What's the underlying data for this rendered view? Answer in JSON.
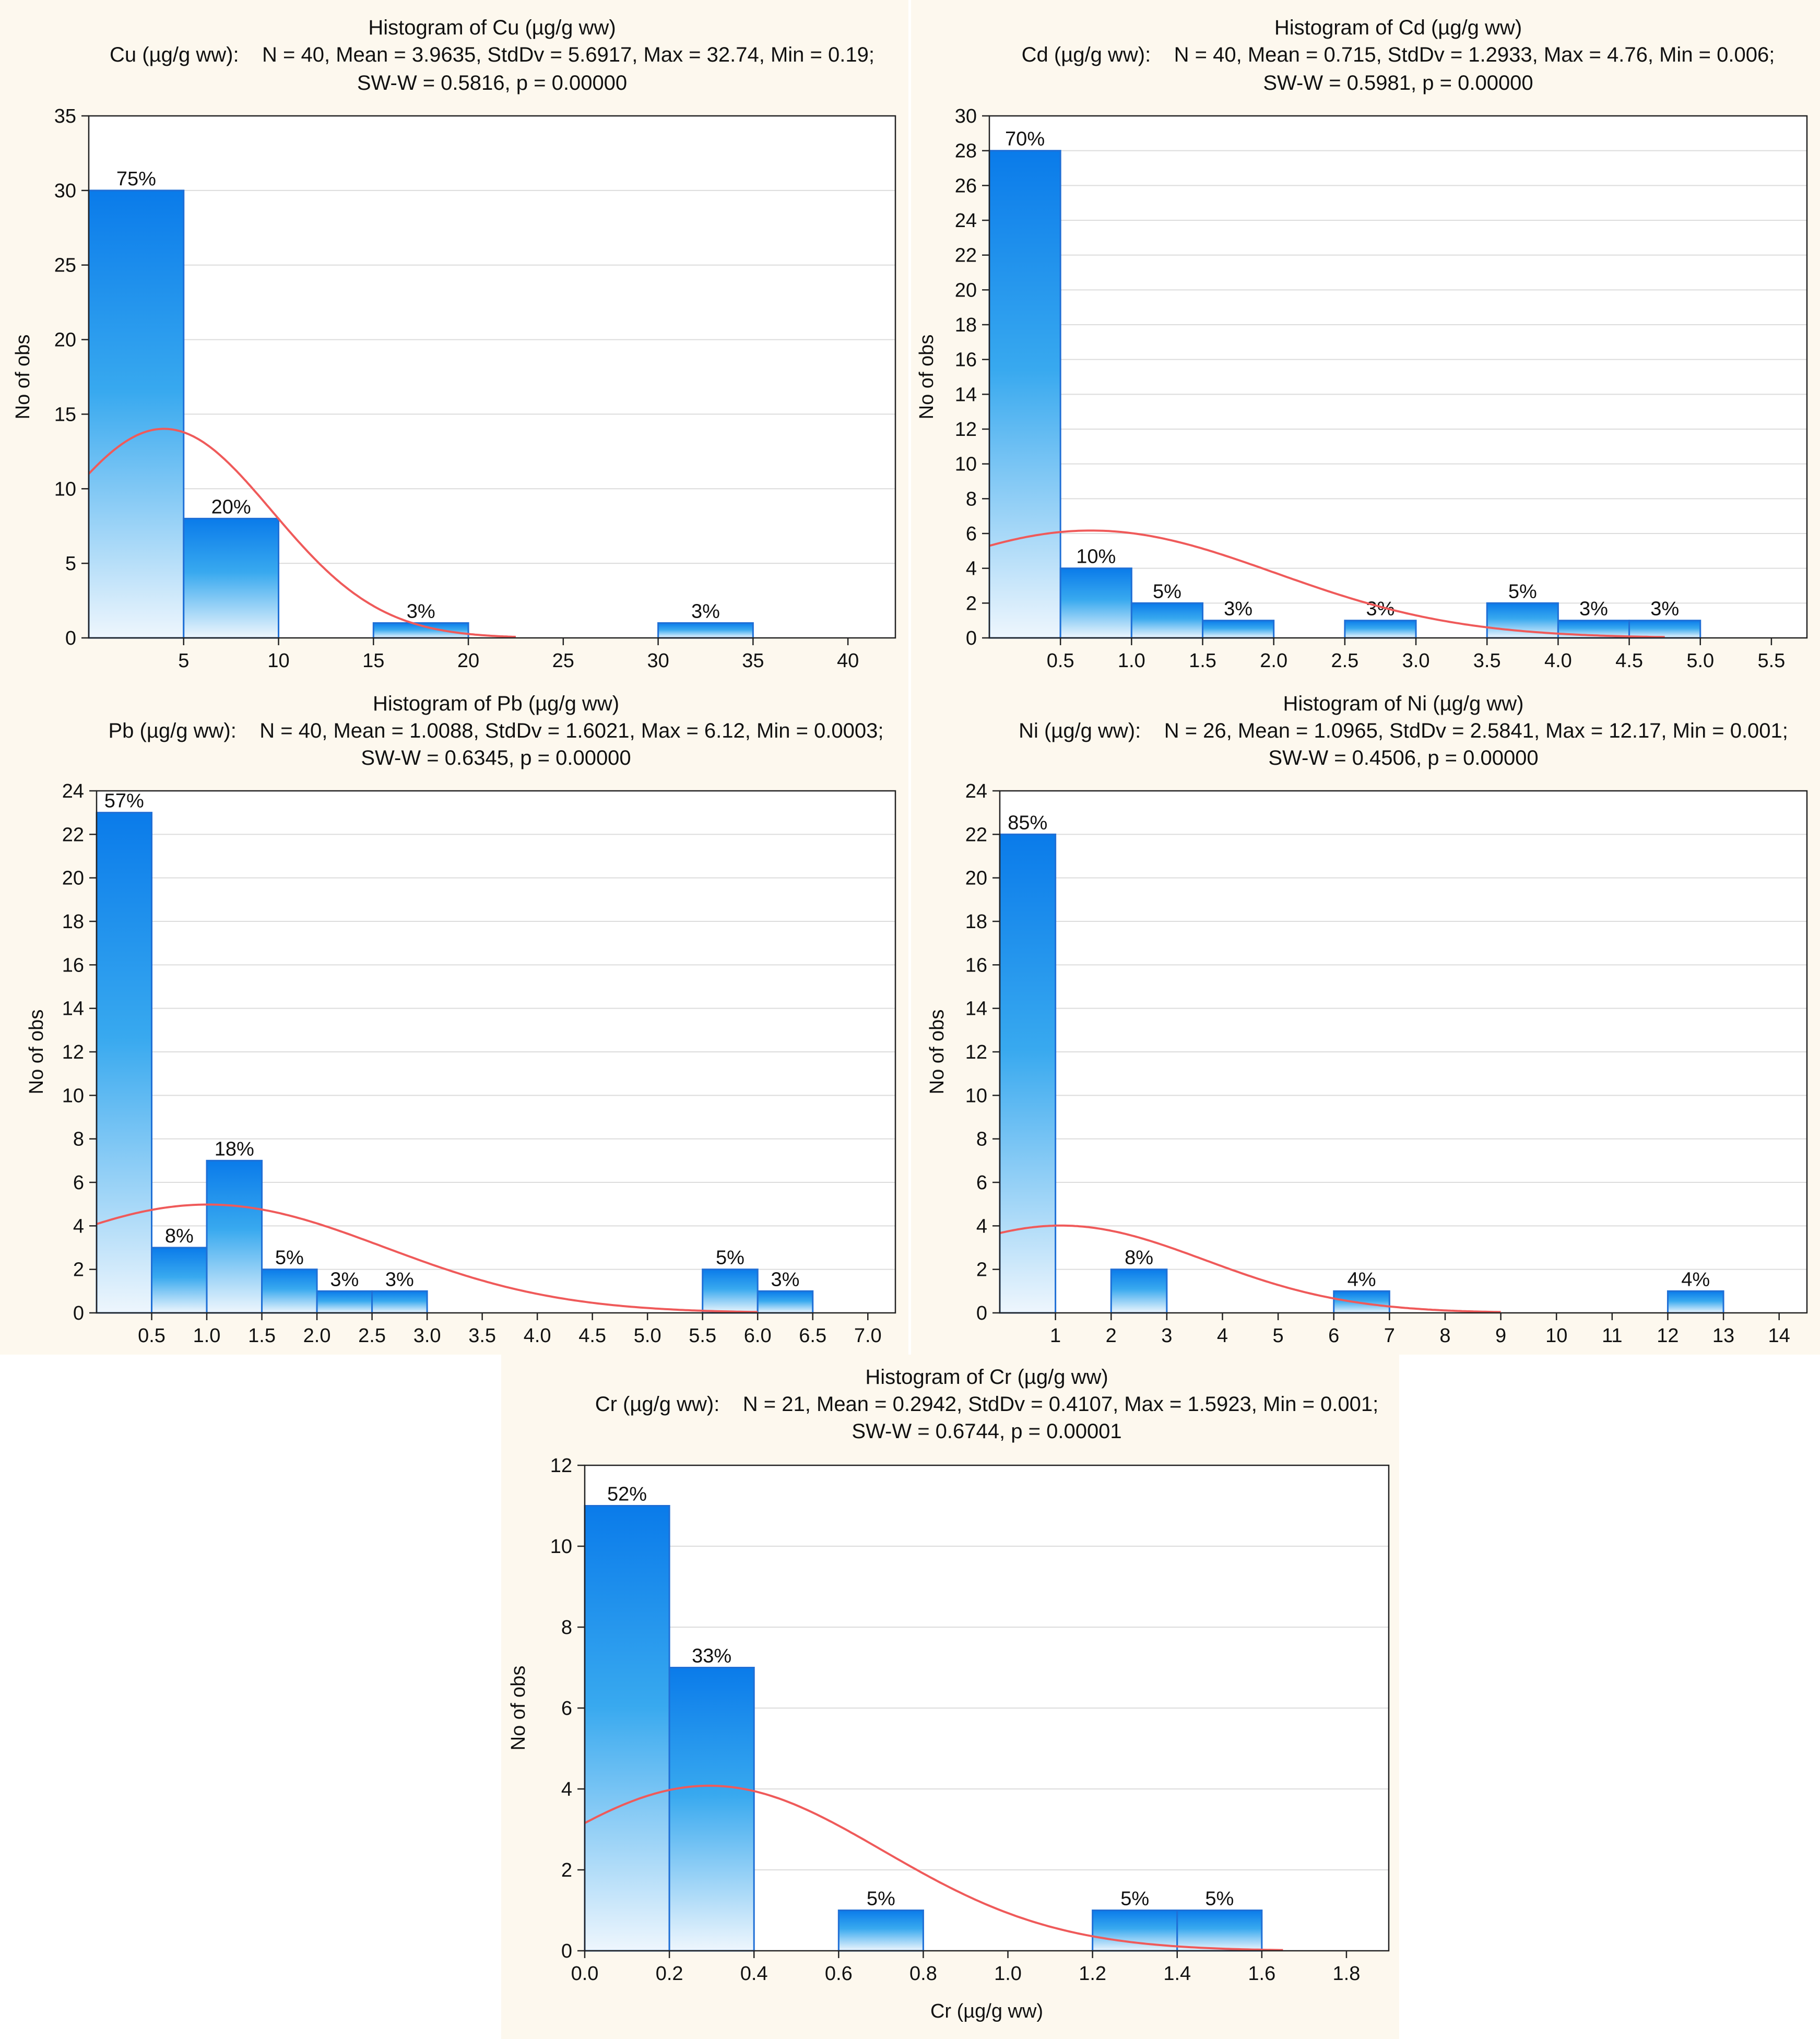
{
  "colors": {
    "panel_background": "#fdf8ee",
    "plot_background": "#ffffff",
    "bar_fill_top": "#0a7bea",
    "bar_fill_bottom": "#eef6fd",
    "bar_stroke": "#1f6fd6",
    "normal_curve": "#ef5a5a",
    "gridline": "#dcdcdc"
  },
  "chart_data": [
    {
      "id": "cu",
      "type": "bar",
      "title": "Histogram of Cu (µg/g ww)",
      "stats_line1": "Cu (µg/g ww):    N = 40, Mean = 3.9635, StdDv = 5.6917, Max = 32.74, Min = 0.19;",
      "stats_line2": "SW-W = 0.5816, p = 0.00000",
      "xlabel": "",
      "ylabel": "No of obs",
      "xlim": [
        0,
        42.5
      ],
      "ylim": [
        0,
        35
      ],
      "xticks": [
        5,
        10,
        15,
        20,
        25,
        30,
        35,
        40
      ],
      "yticks": [
        0,
        5,
        10,
        15,
        20,
        25,
        30,
        35
      ],
      "bins": [
        {
          "x0": 0,
          "x1": 5,
          "count": 30,
          "label": "75%"
        },
        {
          "x0": 5,
          "x1": 10,
          "count": 8,
          "label": "20%"
        },
        {
          "x0": 15,
          "x1": 20,
          "count": 1,
          "label": "3%"
        },
        {
          "x0": 30,
          "x1": 35,
          "count": 1,
          "label": "3%"
        }
      ],
      "normal_fit": {
        "n": 40,
        "mean": 3.9635,
        "sd": 5.6917,
        "bin_width": 5,
        "x_end": 22.5
      },
      "grid": true
    },
    {
      "id": "cd",
      "type": "bar",
      "title": "Histogram of Cd (µg/g ww)",
      "stats_line1": "Cd (µg/g ww):    N = 40, Mean = 0.715, StdDv = 1.2933, Max = 4.76, Min = 0.006;",
      "stats_line2": "SW-W = 0.5981, p = 0.00000",
      "xlabel": "",
      "ylabel": "No of obs",
      "xlim": [
        0,
        5.75
      ],
      "ylim": [
        0,
        30
      ],
      "xticks": [
        0.5,
        1.0,
        1.5,
        2.0,
        2.5,
        3.0,
        3.5,
        4.0,
        4.5,
        5.0,
        5.5
      ],
      "xtick_decimals": 1,
      "yticks": [
        0,
        2,
        4,
        6,
        8,
        10,
        12,
        14,
        16,
        18,
        20,
        22,
        24,
        26,
        28,
        30
      ],
      "bins": [
        {
          "x0": 0,
          "x1": 0.5,
          "count": 28,
          "label": "70%"
        },
        {
          "x0": 0.5,
          "x1": 1.0,
          "count": 4,
          "label": "10%"
        },
        {
          "x0": 1.0,
          "x1": 1.5,
          "count": 2,
          "label": "5%"
        },
        {
          "x0": 1.5,
          "x1": 2.0,
          "count": 1,
          "label": "3%"
        },
        {
          "x0": 2.5,
          "x1": 3.0,
          "count": 1,
          "label": "3%"
        },
        {
          "x0": 3.5,
          "x1": 4.0,
          "count": 2,
          "label": "5%"
        },
        {
          "x0": 4.0,
          "x1": 4.5,
          "count": 1,
          "label": "3%"
        },
        {
          "x0": 4.5,
          "x1": 5.0,
          "count": 1,
          "label": "3%"
        }
      ],
      "normal_fit": {
        "n": 40,
        "mean": 0.715,
        "sd": 1.2933,
        "bin_width": 0.5,
        "x_end": 4.75
      },
      "grid": true
    },
    {
      "id": "pb",
      "type": "bar",
      "title": "Histogram of Pb (µg/g ww)",
      "stats_line1": "Pb (µg/g ww):    N = 40, Mean = 1.0088, StdDv = 1.6021, Max = 6.12, Min = 0.0003;",
      "stats_line2": "SW-W = 0.6345, p = 0.00000",
      "xlabel": "",
      "ylabel": "No of obs",
      "xlim": [
        0,
        7.25
      ],
      "ylim": [
        0,
        24
      ],
      "xticks": [
        0.5,
        1.0,
        1.5,
        2.0,
        2.5,
        3.0,
        3.5,
        4.0,
        4.5,
        5.0,
        5.5,
        6.0,
        6.5,
        7.0
      ],
      "xtick_decimals": 1,
      "yticks": [
        0,
        2,
        4,
        6,
        8,
        10,
        12,
        14,
        16,
        18,
        20,
        22,
        24
      ],
      "bins": [
        {
          "x0": 0,
          "x1": 0.5,
          "count": 23,
          "label": "57%"
        },
        {
          "x0": 0.5,
          "x1": 1.0,
          "count": 3,
          "label": "8%"
        },
        {
          "x0": 1.0,
          "x1": 1.5,
          "count": 7,
          "label": "18%"
        },
        {
          "x0": 1.5,
          "x1": 2.0,
          "count": 2,
          "label": "5%"
        },
        {
          "x0": 2.0,
          "x1": 2.5,
          "count": 1,
          "label": "3%"
        },
        {
          "x0": 2.5,
          "x1": 3.0,
          "count": 1,
          "label": "3%"
        },
        {
          "x0": 5.5,
          "x1": 6.0,
          "count": 2,
          "label": "5%"
        },
        {
          "x0": 6.0,
          "x1": 6.5,
          "count": 1,
          "label": "3%"
        }
      ],
      "normal_fit": {
        "n": 40,
        "mean": 1.0088,
        "sd": 1.6021,
        "bin_width": 0.5,
        "x_end": 6.0
      },
      "grid": true
    },
    {
      "id": "ni",
      "type": "bar",
      "title": "Histogram of Ni (µg/g ww)",
      "stats_line1": "Ni (µg/g ww):    N = 26, Mean = 1.0965, StdDv = 2.5841, Max = 12.17, Min = 0.001;",
      "stats_line2": "SW-W = 0.4506, p = 0.00000",
      "xlabel": "",
      "ylabel": "No of obs",
      "xlim": [
        0,
        14.5
      ],
      "ylim": [
        0,
        24
      ],
      "xticks": [
        1,
        2,
        3,
        4,
        5,
        6,
        7,
        8,
        9,
        10,
        11,
        12,
        13,
        14
      ],
      "yticks": [
        0,
        2,
        4,
        6,
        8,
        10,
        12,
        14,
        16,
        18,
        20,
        22,
        24
      ],
      "bins": [
        {
          "x0": 0,
          "x1": 1,
          "count": 22,
          "label": "85%"
        },
        {
          "x0": 2,
          "x1": 3,
          "count": 2,
          "label": "8%"
        },
        {
          "x0": 6,
          "x1": 7,
          "count": 1,
          "label": "4%"
        },
        {
          "x0": 12,
          "x1": 13,
          "count": 1,
          "label": "4%"
        }
      ],
      "normal_fit": {
        "n": 26,
        "mean": 1.0965,
        "sd": 2.5841,
        "bin_width": 1,
        "x_end": 9.0
      },
      "grid": true
    },
    {
      "id": "cr",
      "type": "bar",
      "title": "Histogram of Cr (µg/g ww)",
      "stats_line1": "Cr (µg/g ww):    N = 21, Mean = 0.2942, StdDv = 0.4107, Max = 1.5923, Min = 0.001;",
      "stats_line2": "SW-W = 0.6744, p = 0.00001",
      "xlabel": "Cr (µg/g ww)",
      "ylabel": "No of obs",
      "xlim": [
        0,
        1.9
      ],
      "ylim": [
        0,
        12
      ],
      "xticks": [
        0.0,
        0.2,
        0.4,
        0.6,
        0.8,
        1.0,
        1.2,
        1.4,
        1.6,
        1.8
      ],
      "xtick_decimals": 1,
      "yticks": [
        0,
        2,
        4,
        6,
        8,
        10,
        12
      ],
      "bins": [
        {
          "x0": 0,
          "x1": 0.2,
          "count": 11,
          "label": "52%"
        },
        {
          "x0": 0.2,
          "x1": 0.4,
          "count": 7,
          "label": "33%"
        },
        {
          "x0": 0.6,
          "x1": 0.8,
          "count": 1,
          "label": "5%"
        },
        {
          "x0": 1.2,
          "x1": 1.4,
          "count": 1,
          "label": "5%"
        },
        {
          "x0": 1.4,
          "x1": 1.6,
          "count": 1,
          "label": "5%"
        }
      ],
      "normal_fit": {
        "n": 21,
        "mean": 0.2942,
        "sd": 0.4107,
        "bin_width": 0.2,
        "x_end": 1.65
      },
      "grid": true
    }
  ]
}
